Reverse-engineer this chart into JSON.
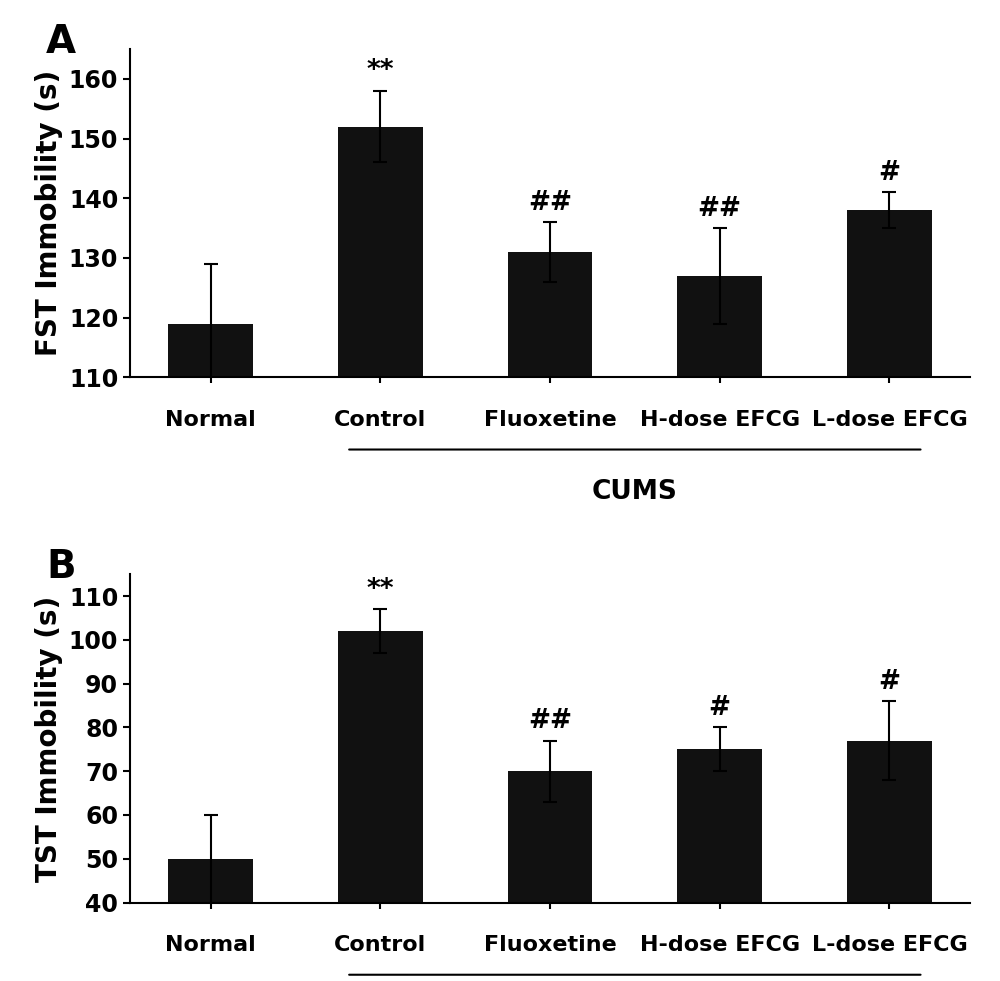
{
  "panel_A": {
    "label": "A",
    "categories": [
      "Normal",
      "Control",
      "Fluoxetine",
      "H-dose EFCG",
      "L-dose EFCG"
    ],
    "values": [
      119,
      152,
      131,
      127,
      138
    ],
    "errors": [
      10,
      6,
      5,
      8,
      3
    ],
    "ylabel": "FST Immobility (s)",
    "ylim": [
      110,
      165
    ],
    "yticks": [
      110,
      120,
      130,
      140,
      150,
      160
    ],
    "annotations": [
      "",
      "**",
      "##",
      "##",
      "#"
    ],
    "bar_color": "#111111"
  },
  "panel_B": {
    "label": "B",
    "categories": [
      "Normal",
      "Control",
      "Fluoxetine",
      "H-dose EFCG",
      "L-dose EFCG"
    ],
    "values": [
      50,
      102,
      70,
      75,
      77
    ],
    "errors": [
      10,
      5,
      7,
      5,
      9
    ],
    "ylabel": "TST Immobility (s)",
    "ylim": [
      40,
      115
    ],
    "yticks": [
      40,
      50,
      60,
      70,
      80,
      90,
      100,
      110
    ],
    "annotations": [
      "",
      "**",
      "##",
      "#",
      "#"
    ],
    "bar_color": "#111111"
  },
  "figure_bg": "#ffffff",
  "bar_width": 0.5,
  "font_family": "DejaVu Sans",
  "ylabel_fontsize": 20,
  "tick_fontsize": 17,
  "annot_fontsize": 19,
  "panel_label_fontsize": 28,
  "cums_fontsize": 19,
  "xticklabel_fontsize": 16
}
